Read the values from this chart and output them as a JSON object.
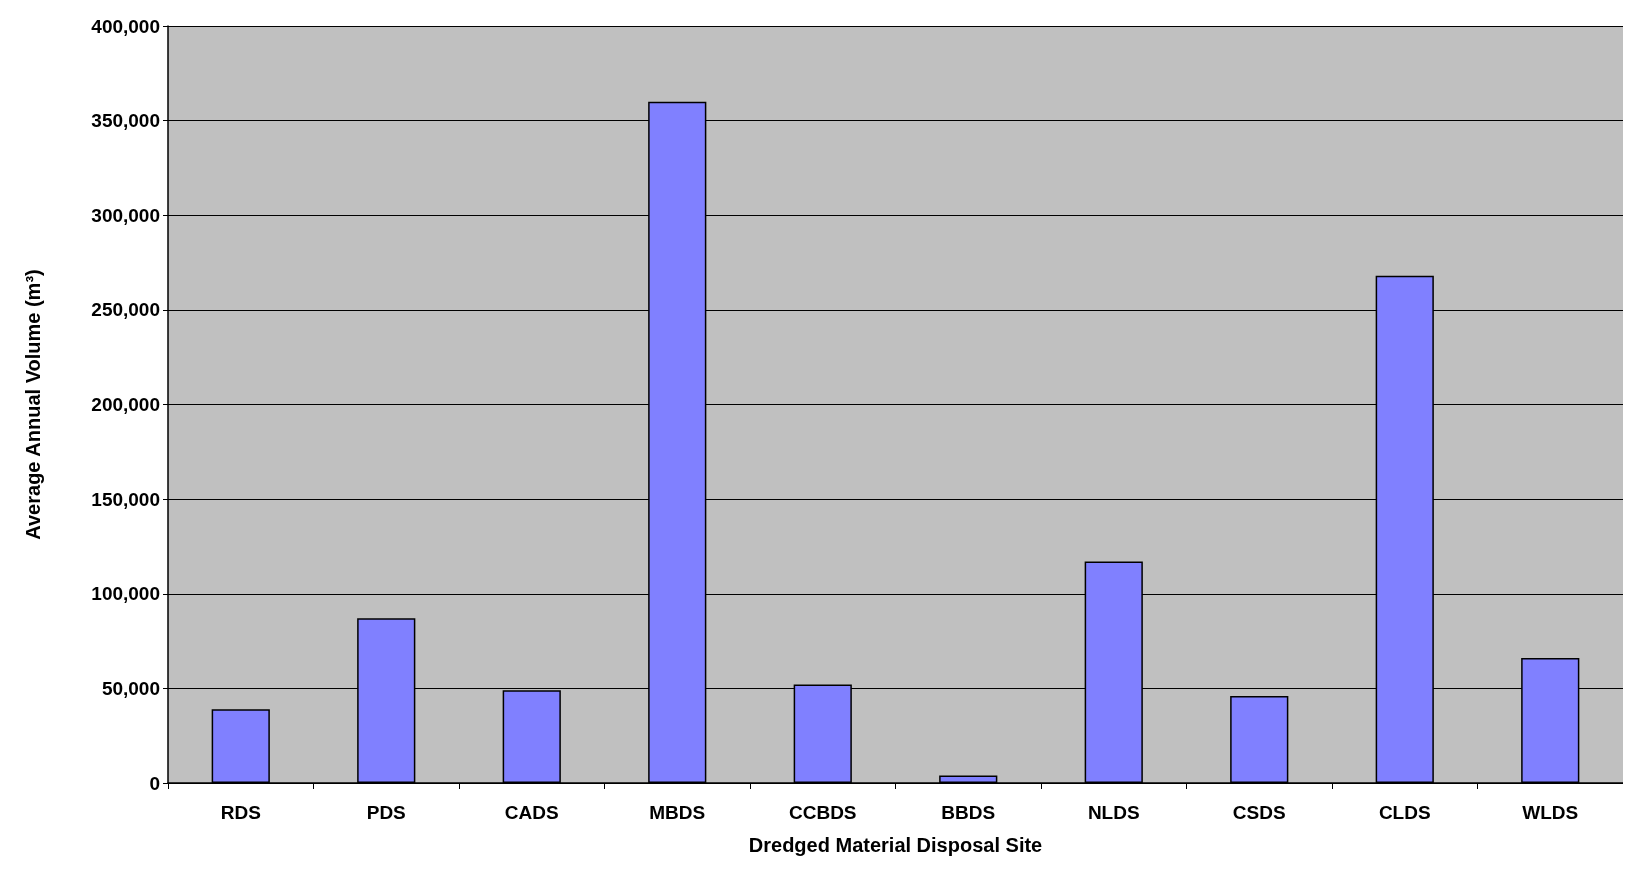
{
  "chart_data": {
    "type": "bar",
    "xlabel": "Dredged Material Disposal Site",
    "ylabel": "Average Annual Volume (m³)",
    "categories": [
      "RDS",
      "PDS",
      "CADS",
      "MBDS",
      "CCBDS",
      "BBDS",
      "NLDS",
      "CSDS",
      "CLDS",
      "WLDS"
    ],
    "values": [
      39000,
      87000,
      49000,
      360000,
      52000,
      4000,
      117000,
      46000,
      268000,
      66000
    ],
    "color": "#8080ff",
    "ylim": [
      0,
      400000
    ],
    "yticks": [
      0,
      {
        "value": 50000,
        "label": "50,000"
      },
      {
        "value": 100000,
        "label": "100,000"
      },
      {
        "value": 150000,
        "label": "150,000"
      },
      {
        "value": 200000,
        "label": "200,000"
      },
      {
        "value": 250000,
        "label": "250,000"
      },
      {
        "value": 300000,
        "label": "300,000"
      },
      {
        "value": 350000,
        "label": "350,000"
      },
      {
        "value": 400000,
        "label": "400,000"
      }
    ],
    "grid": "y"
  }
}
